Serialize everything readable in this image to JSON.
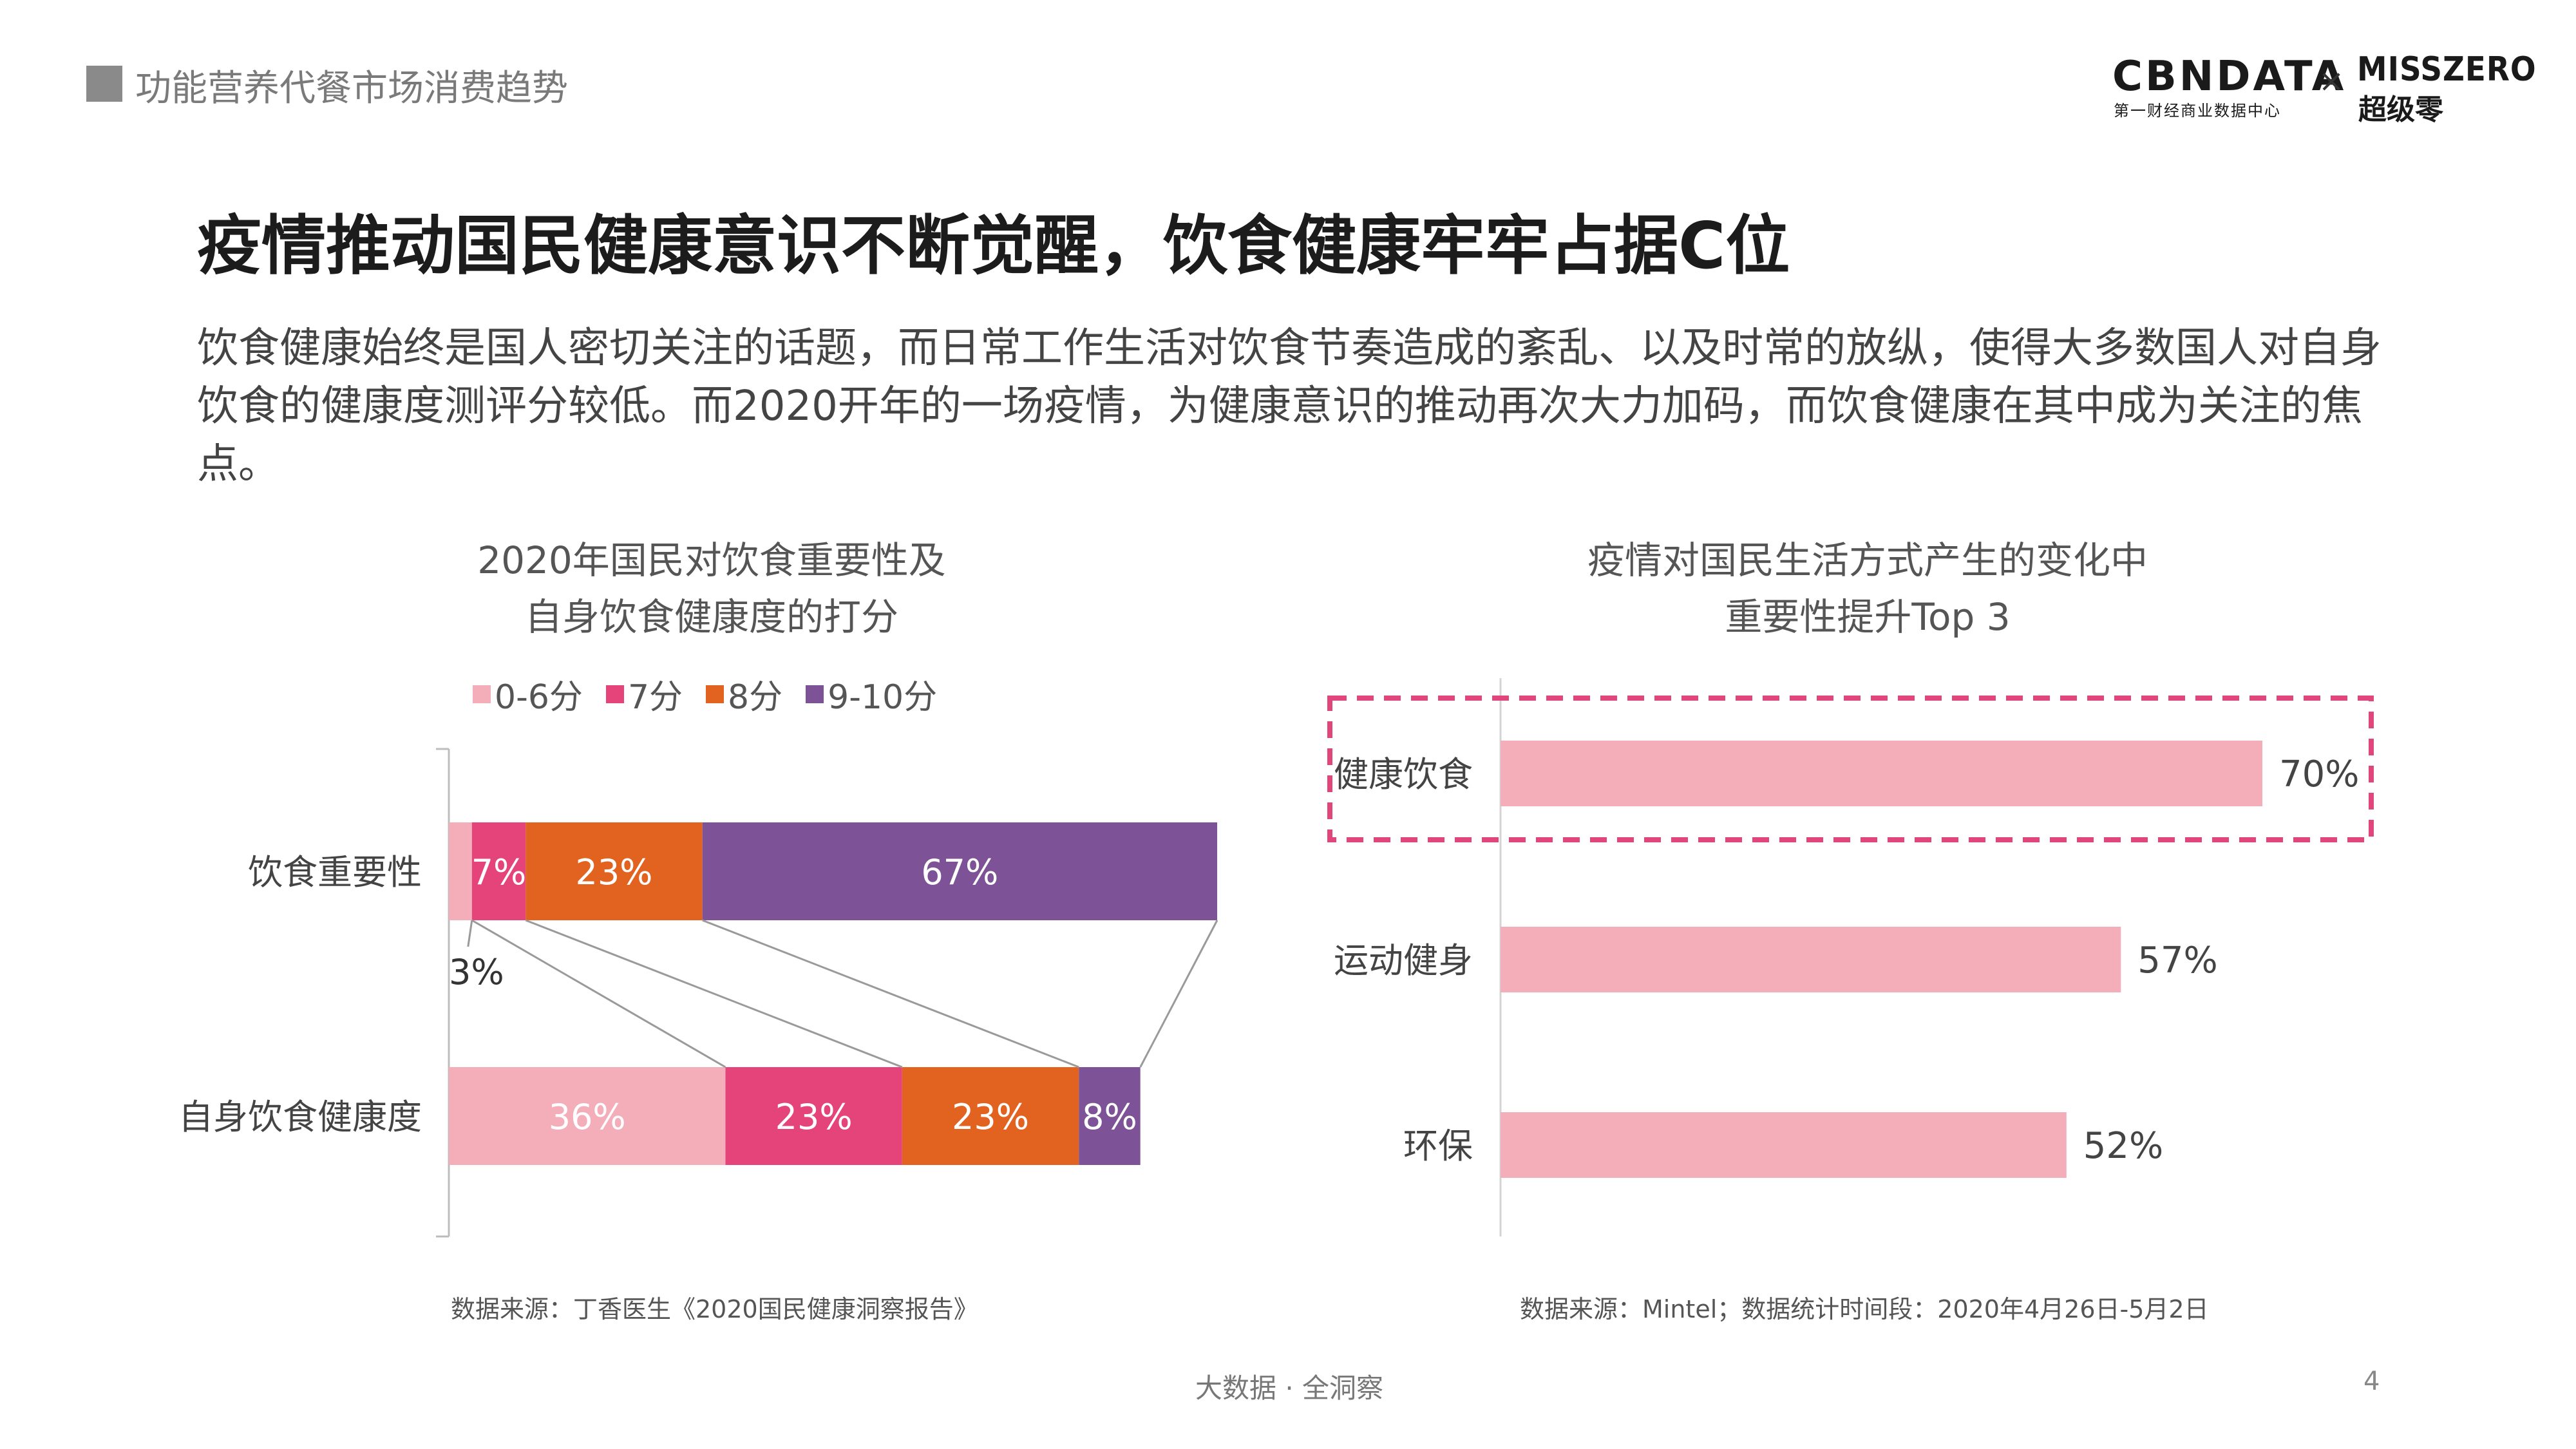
{
  "header": {
    "section_label": "功能营养代餐市场消费趋势",
    "logo_cbn": "CBNDATA",
    "logo_cbn_sub": "第一财经商业数据中心",
    "logo_times": "×",
    "logo_miss": "MISSZERO",
    "logo_miss_sub": "超级零"
  },
  "headline": "疫情推动国民健康意识不断觉醒，饮食健康牢牢占据C位",
  "intro": "饮食健康始终是国人密切关注的话题，而日常工作生活对饮食节奏造成的紊乱、以及时常的放纵，使得大多数国人对自身饮食的健康度测评分较低。而2020开年的一场疫情，为健康意识的推动再次大力加码，而饮食健康在其中成为关注的焦点。",
  "footer": {
    "center": "大数据 · 全洞察",
    "page": "4"
  },
  "chart_data": [
    {
      "type": "bar",
      "orientation": "horizontal",
      "stacked": true,
      "title_line1": "2020年国民对饮食重要性及",
      "title_line2": "自身饮食健康度的打分",
      "categories": [
        "饮食重要性",
        "自身饮食健康度"
      ],
      "series": [
        {
          "name": "0-6分",
          "color": "#f4aeba",
          "values": [
            3,
            36
          ],
          "labels": [
            "3%",
            "36%"
          ]
        },
        {
          "name": "7分",
          "color": "#e4447a",
          "values": [
            7,
            23
          ],
          "labels": [
            "7%",
            "23%"
          ]
        },
        {
          "name": "8分",
          "color": "#e2631f",
          "values": [
            23,
            23
          ],
          "labels": [
            "23%",
            "23%"
          ]
        },
        {
          "name": "9-10分",
          "color": "#7d5296",
          "values": [
            67,
            8
          ],
          "labels": [
            "67%",
            "8%"
          ]
        }
      ],
      "xlim": [
        0,
        100
      ],
      "legend": "top",
      "source": "数据来源：丁香医生《2020国民健康洞察报告》"
    },
    {
      "type": "bar",
      "orientation": "horizontal",
      "title_line1": "疫情对国民生活方式产生的变化中",
      "title_line2": "重要性提升Top 3",
      "categories": [
        "健康饮食",
        "运动健身",
        "环保"
      ],
      "values": [
        70,
        57,
        52
      ],
      "labels": [
        "70%",
        "57%",
        "52%"
      ],
      "color": "#f4aeba",
      "highlight": "健康饮食",
      "highlight_color": "#e0457b",
      "xlim": [
        0,
        100
      ],
      "source": "数据来源：Mintel；数据统计时间段：2020年4月26日-5月2日"
    }
  ]
}
